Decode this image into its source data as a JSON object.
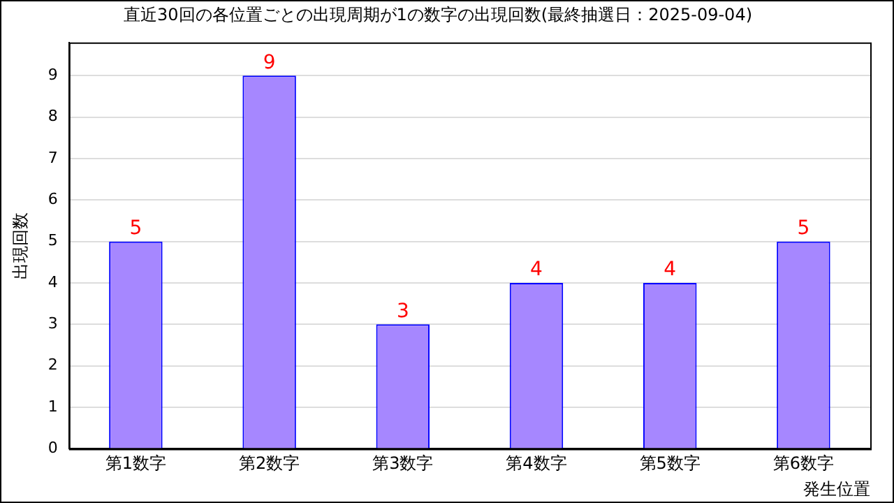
{
  "chart_data": {
    "type": "bar",
    "title": "直近30回の各位置ごとの出現周期が1の数字の出現回数(最終抽選日：2025-09-04)",
    "xlabel": "発生位置",
    "ylabel": "出現回数",
    "categories": [
      "第1数字",
      "第2数字",
      "第3数字",
      "第4数字",
      "第5数字",
      "第6数字"
    ],
    "values": [
      5,
      9,
      3,
      4,
      4,
      5
    ],
    "color": "#a687ff",
    "ylim": [
      0,
      9.8
    ],
    "yticks": [
      0,
      1,
      2,
      3,
      4,
      5,
      6,
      7,
      8,
      9
    ],
    "grid": "y",
    "data_labels": true,
    "legend": false
  }
}
